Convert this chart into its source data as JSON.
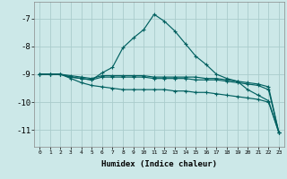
{
  "xlabel": "Humidex (Indice chaleur)",
  "background_color": "#cce8e8",
  "grid_color": "#aacccc",
  "line_color": "#006060",
  "xlim": [
    -0.5,
    23.5
  ],
  "ylim": [
    -11.6,
    -6.4
  ],
  "yticks": [
    -7,
    -8,
    -9,
    -10,
    -11
  ],
  "xticks": [
    0,
    1,
    2,
    3,
    4,
    5,
    6,
    7,
    8,
    9,
    10,
    11,
    12,
    13,
    14,
    15,
    16,
    17,
    18,
    19,
    20,
    21,
    22,
    23
  ],
  "curves": [
    {
      "x": [
        0,
        1,
        2,
        3,
        4,
        5,
        6,
        7,
        8,
        9,
        10,
        11,
        12,
        13,
        14,
        15,
        16,
        17,
        18,
        19,
        20,
        21,
        22,
        23
      ],
      "y": [
        -9.0,
        -9.0,
        -9.0,
        -9.1,
        -9.15,
        -9.2,
        -8.95,
        -8.75,
        -8.05,
        -7.7,
        -7.4,
        -6.85,
        -7.1,
        -7.45,
        -7.9,
        -8.35,
        -8.65,
        -9.0,
        -9.15,
        -9.25,
        -9.55,
        -9.75,
        -9.95,
        -11.1
      ]
    },
    {
      "x": [
        0,
        1,
        2,
        3,
        4,
        5,
        6,
        7,
        8,
        9,
        10,
        11,
        12,
        13,
        14,
        15,
        16,
        17,
        18,
        19,
        20,
        21,
        22,
        23
      ],
      "y": [
        -9.0,
        -9.0,
        -9.0,
        -9.05,
        -9.1,
        -9.15,
        -9.05,
        -9.05,
        -9.05,
        -9.05,
        -9.05,
        -9.1,
        -9.1,
        -9.1,
        -9.1,
        -9.1,
        -9.15,
        -9.15,
        -9.2,
        -9.25,
        -9.3,
        -9.35,
        -9.45,
        -11.1
      ]
    },
    {
      "x": [
        0,
        1,
        2,
        3,
        4,
        5,
        6,
        7,
        8,
        9,
        10,
        11,
        12,
        13,
        14,
        15,
        16,
        17,
        18,
        19,
        20,
        21,
        22,
        23
      ],
      "y": [
        -9.0,
        -9.0,
        -9.0,
        -9.1,
        -9.15,
        -9.2,
        -9.1,
        -9.1,
        -9.1,
        -9.1,
        -9.1,
        -9.15,
        -9.15,
        -9.15,
        -9.15,
        -9.2,
        -9.2,
        -9.2,
        -9.25,
        -9.3,
        -9.35,
        -9.4,
        -9.55,
        -11.1
      ]
    },
    {
      "x": [
        0,
        1,
        2,
        3,
        4,
        5,
        6,
        7,
        8,
        9,
        10,
        11,
        12,
        13,
        14,
        15,
        16,
        17,
        18,
        19,
        20,
        21,
        22,
        23
      ],
      "y": [
        -9.0,
        -9.0,
        -9.0,
        -9.15,
        -9.3,
        -9.4,
        -9.45,
        -9.5,
        -9.55,
        -9.55,
        -9.55,
        -9.55,
        -9.55,
        -9.6,
        -9.6,
        -9.65,
        -9.65,
        -9.7,
        -9.75,
        -9.8,
        -9.85,
        -9.9,
        -10.0,
        -11.1
      ]
    }
  ]
}
